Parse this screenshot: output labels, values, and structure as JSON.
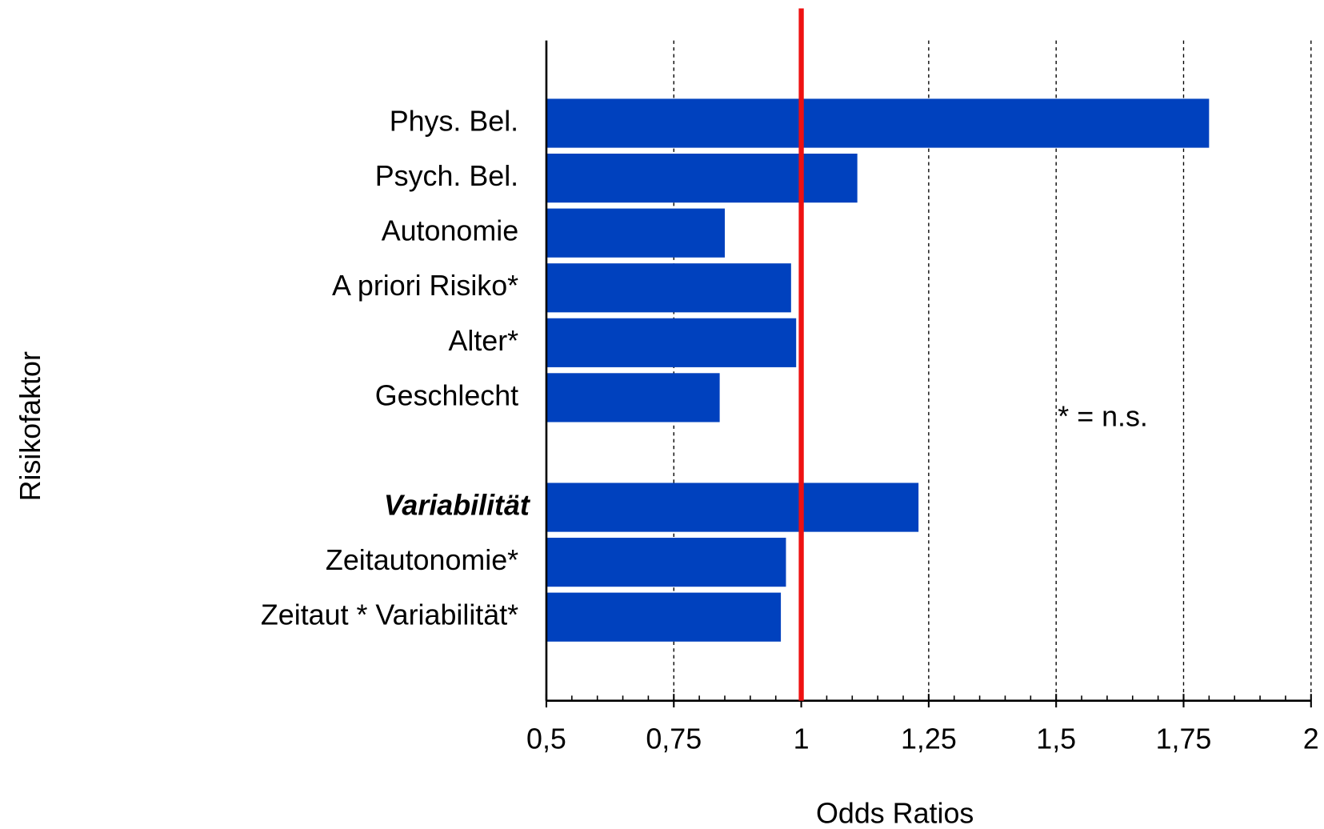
{
  "chart_data": {
    "type": "barh",
    "y_axis_label": "Risikofaktor",
    "x_axis_label": "Odds Ratios",
    "annotation": "* = n.s.",
    "categories": [
      "Phys. Bel.",
      "Psych. Bel.",
      "Autonomie",
      "A priori Risiko*",
      "Alter*",
      "Geschlecht",
      null,
      "Variabilität",
      "Zeitautonomie*",
      "Zeitaut * Variabilität*"
    ],
    "values": [
      1.8,
      1.11,
      0.85,
      0.98,
      0.99,
      0.84,
      null,
      1.23,
      0.97,
      0.96
    ],
    "color": "#0041be",
    "bold_category_index": 7,
    "xlim": [
      0.5,
      2
    ],
    "xticks": [
      {
        "value": 0.5,
        "label": "0,5"
      },
      {
        "value": 0.75,
        "label": "0,75"
      },
      1,
      {
        "value": 1.25,
        "label": "1,25"
      },
      {
        "value": 1.5,
        "label": "1,5"
      },
      {
        "value": 1.75,
        "label": "1,75"
      },
      2
    ],
    "xticks_minor": [
      0.55,
      0.6,
      0.65,
      0.7,
      0.8,
      0.85,
      0.9,
      0.95,
      1.05,
      1.1,
      1.15,
      1.2,
      1.3,
      1.35,
      1.4,
      1.45,
      1.55,
      1.6,
      1.65,
      1.7,
      1.8,
      1.85,
      1.9,
      1.95
    ],
    "grid": true,
    "grid_style": "dashed",
    "reference_line": {
      "value": 1,
      "color": "#ee1111"
    }
  }
}
